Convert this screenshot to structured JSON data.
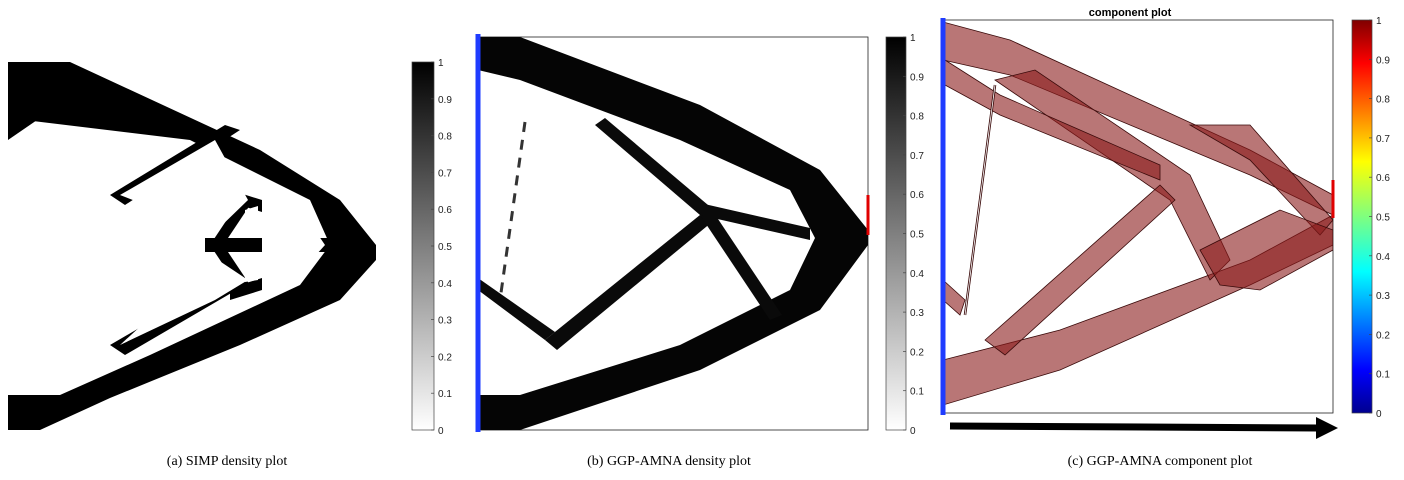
{
  "figure": {
    "captions": {
      "a": "(a) SIMP density plot",
      "b": "(b) GGP-AMNA density plot",
      "c": "(c) GGP-AMNA component plot"
    },
    "panel_c_title": "component plot"
  },
  "colorbars": {
    "gray_a": [
      "1",
      "0.9",
      "0.8",
      "0.7",
      "0.6",
      "0.5",
      "0.4",
      "0.3",
      "0.2",
      "0.1",
      "0"
    ],
    "gray_b": [
      "1",
      "0.9",
      "0.8",
      "0.7",
      "0.6",
      "0.5",
      "0.4",
      "0.3",
      "0.2",
      "0.1",
      "0"
    ],
    "jet_c": [
      "1",
      "0.9",
      "0.8",
      "0.7",
      "0.6",
      "0.5",
      "0.4",
      "0.3",
      "0.2",
      "0.1",
      "0"
    ]
  },
  "colors": {
    "structure": "#000000",
    "support": "#1f3cff",
    "load": "#e00000",
    "component_fill": "#8b1a1a",
    "arrow": "#000000"
  }
}
